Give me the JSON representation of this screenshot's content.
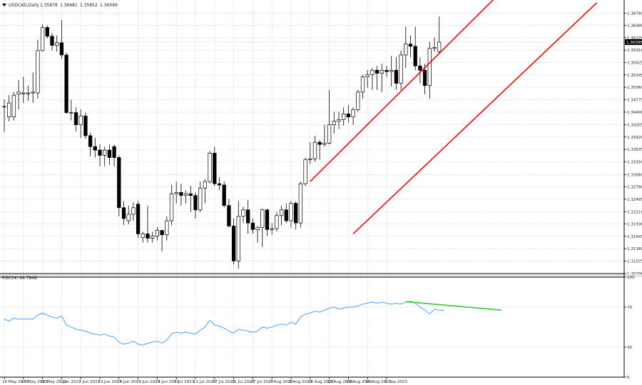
{
  "chart_data": [
    {
      "type": "candlestick",
      "header": {
        "symbol_label": "USDCAD,Daily",
        "ohlc": [
          "1.35878",
          "1.36681",
          "1.35852",
          "1.36096"
        ]
      },
      "ylim": [
        1.3079,
        1.3706
      ],
      "y_tick_labels": [
        "1.36760",
        "1.36480",
        "1.36195",
        "1.35910",
        "1.35625",
        "1.35345",
        "1.35060",
        "1.34775",
        "1.34490",
        "1.34205",
        "1.33920",
        "1.33635",
        "1.33350",
        "1.33060",
        "1.32780",
        "1.32495",
        "1.32210",
        "1.31930",
        "1.31645",
        "1.31360",
        "1.31075",
        "1.30790"
      ],
      "y_ticks": [
        1.3676,
        1.3648,
        1.36195,
        1.3591,
        1.35625,
        1.35345,
        1.3506,
        1.34775,
        1.3449,
        1.34205,
        1.3392,
        1.33635,
        1.3335,
        1.3306,
        1.3278,
        1.32495,
        1.3221,
        1.3193,
        1.31645,
        1.3136,
        1.31075,
        1.3079
      ],
      "current_price_label": "1.36096",
      "current_price": 1.36096,
      "x_tick_labels": [
        "16 May 2023",
        "22 May 2023",
        "26 May 2023",
        "1 Jun 2023",
        "7 Jun 2023",
        "13 Jun 2023",
        "19 Jun 2023",
        "23 Jun 2023",
        "29 Jun 2023",
        "5 Jul 2023",
        "11 Jul 2023",
        "17 Jul 2023",
        "21 Jul 2023",
        "27 Jul 2023",
        "2 Aug 2023",
        "8 Aug 2023",
        "14 Aug 2023",
        "18 Aug 2023",
        "24 Aug 2023",
        "30 Aug 2023",
        "5 Sep 2023"
      ],
      "x_tick_index": [
        0,
        4,
        8,
        12,
        16,
        20,
        24,
        28,
        32,
        36,
        40,
        44,
        48,
        52,
        56,
        60,
        64,
        68,
        72,
        76,
        80
      ],
      "candles": [
        {
          "o": 1.3462,
          "h": 1.3478,
          "l": 1.3404,
          "c": 1.3462
        },
        {
          "o": 1.3438,
          "h": 1.3488,
          "l": 1.3428,
          "c": 1.347
        },
        {
          "o": 1.3438,
          "h": 1.3495,
          "l": 1.343,
          "c": 1.3488
        },
        {
          "o": 1.349,
          "h": 1.3523,
          "l": 1.3455,
          "c": 1.3495
        },
        {
          "o": 1.3491,
          "h": 1.353,
          "l": 1.347,
          "c": 1.3493
        },
        {
          "o": 1.3491,
          "h": 1.351,
          "l": 1.3475,
          "c": 1.3493
        },
        {
          "o": 1.3493,
          "h": 1.354,
          "l": 1.347,
          "c": 1.3495
        },
        {
          "o": 1.3493,
          "h": 1.3615,
          "l": 1.348,
          "c": 1.359
        },
        {
          "o": 1.359,
          "h": 1.365,
          "l": 1.3588,
          "c": 1.3643
        },
        {
          "o": 1.3643,
          "h": 1.3648,
          "l": 1.3618,
          "c": 1.3623
        },
        {
          "o": 1.3623,
          "h": 1.363,
          "l": 1.359,
          "c": 1.3602
        },
        {
          "o": 1.3602,
          "h": 1.3625,
          "l": 1.3588,
          "c": 1.3608
        },
        {
          "o": 1.3608,
          "h": 1.366,
          "l": 1.3572,
          "c": 1.358
        },
        {
          "o": 1.358,
          "h": 1.3585,
          "l": 1.3445,
          "c": 1.3448
        },
        {
          "o": 1.3448,
          "h": 1.3478,
          "l": 1.343,
          "c": 1.3448
        },
        {
          "o": 1.3448,
          "h": 1.346,
          "l": 1.3405,
          "c": 1.342
        },
        {
          "o": 1.342,
          "h": 1.3455,
          "l": 1.339,
          "c": 1.344
        },
        {
          "o": 1.344,
          "h": 1.3448,
          "l": 1.3388,
          "c": 1.3395
        },
        {
          "o": 1.3395,
          "h": 1.3402,
          "l": 1.3348,
          "c": 1.337
        },
        {
          "o": 1.337,
          "h": 1.339,
          "l": 1.3345,
          "c": 1.3362
        },
        {
          "o": 1.3362,
          "h": 1.3375,
          "l": 1.3325,
          "c": 1.335
        },
        {
          "o": 1.335,
          "h": 1.337,
          "l": 1.3325,
          "c": 1.3362
        },
        {
          "o": 1.3362,
          "h": 1.3375,
          "l": 1.3328,
          "c": 1.3345
        },
        {
          "o": 1.337,
          "h": 1.3375,
          "l": 1.3325,
          "c": 1.3345
        },
        {
          "o": 1.3345,
          "h": 1.335,
          "l": 1.321,
          "c": 1.323
        },
        {
          "o": 1.323,
          "h": 1.3245,
          "l": 1.319,
          "c": 1.3205
        },
        {
          "o": 1.32,
          "h": 1.3235,
          "l": 1.3192,
          "c": 1.3215
        },
        {
          "o": 1.3215,
          "h": 1.3242,
          "l": 1.32,
          "c": 1.323
        },
        {
          "o": 1.3238,
          "h": 1.3245,
          "l": 1.316,
          "c": 1.317
        },
        {
          "o": 1.3162,
          "h": 1.3175,
          "l": 1.315,
          "c": 1.317
        },
        {
          "o": 1.317,
          "h": 1.3235,
          "l": 1.315,
          "c": 1.316
        },
        {
          "o": 1.316,
          "h": 1.3175,
          "l": 1.315,
          "c": 1.3165
        },
        {
          "o": 1.3165,
          "h": 1.3185,
          "l": 1.3155,
          "c": 1.3178
        },
        {
          "o": 1.3178,
          "h": 1.3178,
          "l": 1.313,
          "c": 1.3168
        },
        {
          "o": 1.3168,
          "h": 1.321,
          "l": 1.3155,
          "c": 1.32
        },
        {
          "o": 1.32,
          "h": 1.3282,
          "l": 1.319,
          "c": 1.3262
        },
        {
          "o": 1.3262,
          "h": 1.329,
          "l": 1.324,
          "c": 1.3265
        },
        {
          "o": 1.3265,
          "h": 1.3285,
          "l": 1.3235,
          "c": 1.3258
        },
        {
          "o": 1.3258,
          "h": 1.327,
          "l": 1.324,
          "c": 1.3262
        },
        {
          "o": 1.3262,
          "h": 1.328,
          "l": 1.322,
          "c": 1.3258
        },
        {
          "o": 1.3258,
          "h": 1.3265,
          "l": 1.3205,
          "c": 1.3225
        },
        {
          "o": 1.3225,
          "h": 1.329,
          "l": 1.322,
          "c": 1.3275
        },
        {
          "o": 1.3275,
          "h": 1.3295,
          "l": 1.324,
          "c": 1.329
        },
        {
          "o": 1.329,
          "h": 1.336,
          "l": 1.3285,
          "c": 1.3355
        },
        {
          "o": 1.3355,
          "h": 1.337,
          "l": 1.328,
          "c": 1.3285
        },
        {
          "o": 1.3285,
          "h": 1.33,
          "l": 1.327,
          "c": 1.3282
        },
        {
          "o": 1.3282,
          "h": 1.329,
          "l": 1.323,
          "c": 1.3235
        },
        {
          "o": 1.3235,
          "h": 1.325,
          "l": 1.3185,
          "c": 1.3188
        },
        {
          "o": 1.3188,
          "h": 1.3205,
          "l": 1.31,
          "c": 1.3108
        },
        {
          "o": 1.3108,
          "h": 1.3245,
          "l": 1.309,
          "c": 1.321
        },
        {
          "o": 1.321,
          "h": 1.3232,
          "l": 1.3195,
          "c": 1.3225
        },
        {
          "o": 1.3225,
          "h": 1.3248,
          "l": 1.317,
          "c": 1.3195
        },
        {
          "o": 1.3195,
          "h": 1.3205,
          "l": 1.317,
          "c": 1.318
        },
        {
          "o": 1.318,
          "h": 1.3188,
          "l": 1.315,
          "c": 1.3185
        },
        {
          "o": 1.3185,
          "h": 1.3228,
          "l": 1.314,
          "c": 1.3225
        },
        {
          "o": 1.3225,
          "h": 1.3228,
          "l": 1.3165,
          "c": 1.318
        },
        {
          "o": 1.318,
          "h": 1.3195,
          "l": 1.3168,
          "c": 1.3182
        },
        {
          "o": 1.3182,
          "h": 1.322,
          "l": 1.3175,
          "c": 1.3212
        },
        {
          "o": 1.3212,
          "h": 1.3235,
          "l": 1.319,
          "c": 1.3225
        },
        {
          "o": 1.3225,
          "h": 1.324,
          "l": 1.3195,
          "c": 1.32
        },
        {
          "o": 1.32,
          "h": 1.3245,
          "l": 1.3185,
          "c": 1.324
        },
        {
          "o": 1.324,
          "h": 1.3245,
          "l": 1.318,
          "c": 1.3195
        },
        {
          "o": 1.3195,
          "h": 1.329,
          "l": 1.3185,
          "c": 1.3285
        },
        {
          "o": 1.3285,
          "h": 1.3345,
          "l": 1.328,
          "c": 1.334
        },
        {
          "o": 1.334,
          "h": 1.338,
          "l": 1.333,
          "c": 1.3342
        },
        {
          "o": 1.3342,
          "h": 1.3395,
          "l": 1.3335,
          "c": 1.338
        },
        {
          "o": 1.338,
          "h": 1.3385,
          "l": 1.334,
          "c": 1.3375
        },
        {
          "o": 1.3375,
          "h": 1.342,
          "l": 1.337,
          "c": 1.3378
        },
        {
          "o": 1.3378,
          "h": 1.35,
          "l": 1.3375,
          "c": 1.342
        },
        {
          "o": 1.342,
          "h": 1.345,
          "l": 1.34,
          "c": 1.3428
        },
        {
          "o": 1.3428,
          "h": 1.345,
          "l": 1.341,
          "c": 1.3432
        },
        {
          "o": 1.3432,
          "h": 1.346,
          "l": 1.3418,
          "c": 1.3445
        },
        {
          "o": 1.3445,
          "h": 1.3465,
          "l": 1.3425,
          "c": 1.3438
        },
        {
          "o": 1.3438,
          "h": 1.346,
          "l": 1.342,
          "c": 1.3455
        },
        {
          "o": 1.3455,
          "h": 1.35,
          "l": 1.345,
          "c": 1.3495
        },
        {
          "o": 1.3495,
          "h": 1.3535,
          "l": 1.348,
          "c": 1.353
        },
        {
          "o": 1.353,
          "h": 1.3545,
          "l": 1.3505,
          "c": 1.3535
        },
        {
          "o": 1.3535,
          "h": 1.355,
          "l": 1.35,
          "c": 1.3545
        },
        {
          "o": 1.3545,
          "h": 1.3555,
          "l": 1.35,
          "c": 1.3538
        },
        {
          "o": 1.3538,
          "h": 1.356,
          "l": 1.3495,
          "c": 1.3545
        },
        {
          "o": 1.3545,
          "h": 1.3555,
          "l": 1.353,
          "c": 1.3542
        },
        {
          "o": 1.3542,
          "h": 1.3578,
          "l": 1.3508,
          "c": 1.3545
        },
        {
          "o": 1.3545,
          "h": 1.3575,
          "l": 1.35,
          "c": 1.3515
        },
        {
          "o": 1.3515,
          "h": 1.359,
          "l": 1.35,
          "c": 1.358
        },
        {
          "o": 1.358,
          "h": 1.3645,
          "l": 1.355,
          "c": 1.3605
        },
        {
          "o": 1.3605,
          "h": 1.3625,
          "l": 1.3575,
          "c": 1.36
        },
        {
          "o": 1.36,
          "h": 1.3645,
          "l": 1.3545,
          "c": 1.3555
        },
        {
          "o": 1.3555,
          "h": 1.3575,
          "l": 1.3515,
          "c": 1.3545
        },
        {
          "o": 1.3545,
          "h": 1.356,
          "l": 1.349,
          "c": 1.351
        },
        {
          "o": 1.351,
          "h": 1.361,
          "l": 1.348,
          "c": 1.3595
        },
        {
          "o": 1.3595,
          "h": 1.362,
          "l": 1.3588,
          "c": 1.3597
        },
        {
          "o": 1.35878,
          "h": 1.36681,
          "l": 1.35852,
          "c": 1.36096
        }
      ],
      "channel_lines": {
        "color": "#ff0000",
        "upper": {
          "from_index": 64,
          "from_value": 1.329,
          "to_index": 103,
          "to_value": 1.3714
        },
        "lower": {
          "from_index": 73,
          "from_value": 1.317,
          "to_index": 124,
          "to_value": 1.37
        }
      },
      "colors": {
        "up_body": "#ffffff",
        "down_body": "#000000",
        "outline": "#000000",
        "grid": "#c8c8c8",
        "background": "#ffffff"
      }
    },
    {
      "type": "line",
      "header_label": "RSI(14) 66.7848",
      "ylim": [
        0,
        100
      ],
      "y_tick_labels": [
        "100",
        "70",
        "30",
        "0"
      ],
      "y_ticks": [
        100,
        70,
        30,
        0
      ],
      "values": [
        58,
        56,
        59,
        58,
        58,
        58,
        58,
        62,
        64,
        62,
        60,
        59,
        61,
        52,
        50,
        48,
        47,
        46,
        44,
        43,
        42,
        43,
        41,
        40,
        35,
        33,
        34,
        36,
        33,
        32,
        34,
        35,
        36,
        34,
        37,
        43,
        45,
        44,
        45,
        44,
        43,
        47,
        50,
        57,
        52,
        51,
        49,
        46,
        44,
        48,
        47,
        46,
        45,
        46,
        50,
        49,
        50,
        52,
        53,
        52,
        55,
        53,
        60,
        63,
        64,
        66,
        65,
        67,
        69,
        70,
        68,
        69,
        70,
        70,
        71,
        73,
        74,
        75,
        74,
        75,
        74,
        73,
        74,
        73,
        75,
        76,
        74,
        70,
        67,
        63,
        68,
        67,
        66.7848
      ],
      "line_color": "#3399ff",
      "divergence_line": {
        "color": "#33cc33",
        "from_index": 84,
        "from_value": 75.5,
        "to_index": 104,
        "to_value": 67
      }
    }
  ]
}
